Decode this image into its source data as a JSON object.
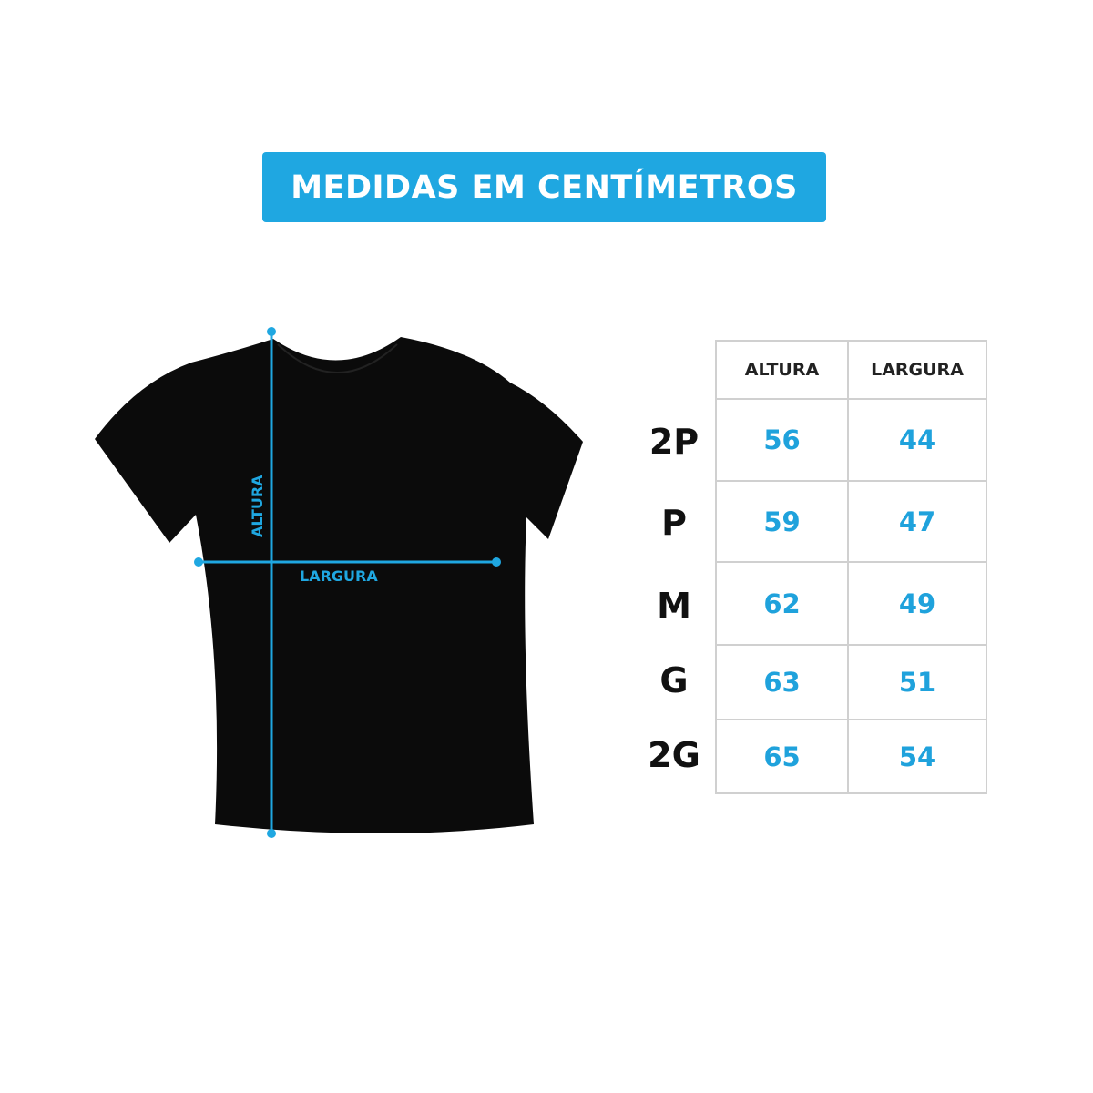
{
  "banner": {
    "title": "MEDIDAS EM CENTÍMETROS",
    "color": "#1fa7e1"
  },
  "diagram": {
    "height_label": "ALTURA",
    "width_label": "LARGURA",
    "shirt_color": "#0b0b0b",
    "measure_color": "#1fa7e1"
  },
  "table": {
    "headers": [
      "ALTURA",
      "LARGURA"
    ],
    "rows": [
      {
        "size": "2P",
        "altura": "56",
        "largura": "44"
      },
      {
        "size": "P",
        "altura": "59",
        "largura": "47"
      },
      {
        "size": "M",
        "altura": "62",
        "largura": "49"
      },
      {
        "size": "G",
        "altura": "63",
        "largura": "51"
      },
      {
        "size": "2G",
        "altura": "65",
        "largura": "54"
      }
    ]
  }
}
